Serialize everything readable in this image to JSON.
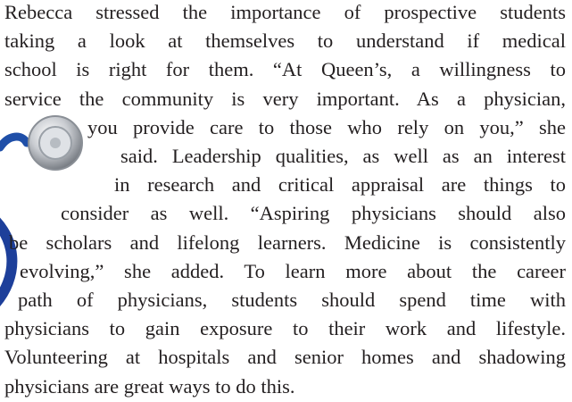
{
  "paragraph": {
    "lines": [
      "Rebecca stressed the importance of prospective students",
      "taking a look at themselves to understand if medical",
      "school is right for them. “At Queen’s, a willingness to",
      "service the community is very important. As a physician,",
      "you provide care to those who rely on you,” she",
      "said. Leadership qualities, as well as an interest",
      "in research and critical appraisal are things to",
      "consider as well. “Aspiring physicians should also",
      "be scholars and lifelong learners. Medicine is consistently",
      "evolving,” she added. To learn more about the career",
      "path of physicians, students should spend time with",
      "physicians to gain exposure to their work and lifestyle.",
      "Volunteering at hospitals and senior homes and shadowing",
      "physicians are great ways to do this."
    ]
  }
}
